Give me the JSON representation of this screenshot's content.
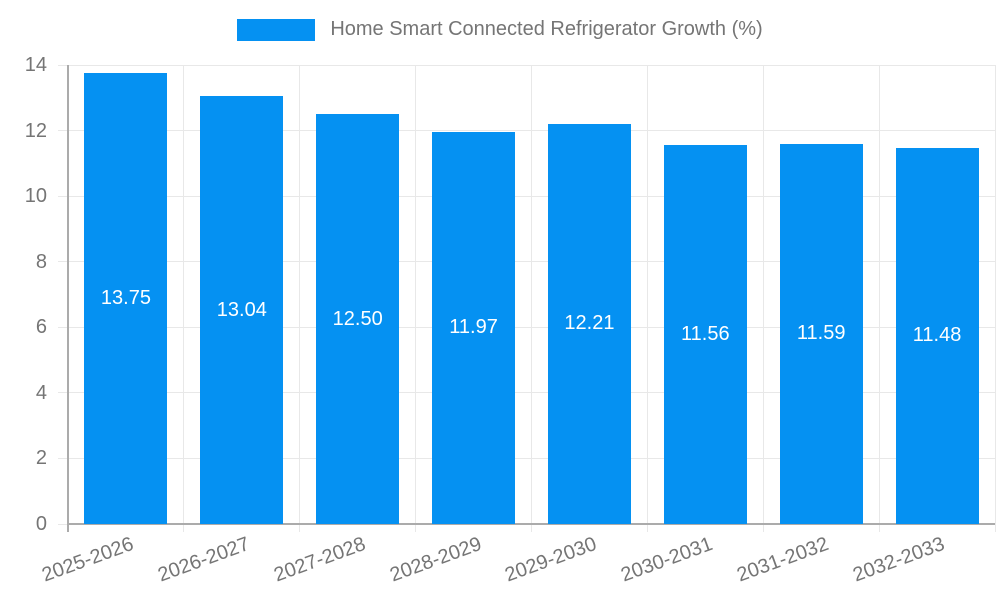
{
  "chart_data": {
    "type": "bar",
    "title": "Home Smart Connected Refrigerator Growth (%)",
    "legend_position": "top-center",
    "categories": [
      "2025-2026",
      "2026-2027",
      "2027-2028",
      "2028-2029",
      "2029-2030",
      "2030-2031",
      "2031-2032",
      "2032-2033"
    ],
    "values": [
      13.75,
      13.04,
      12.5,
      11.97,
      12.21,
      11.56,
      11.59,
      11.48
    ],
    "value_labels": [
      "13.75",
      "13.04",
      "12.50",
      "11.97",
      "12.21",
      "11.56",
      "11.59",
      "11.48"
    ],
    "xlabel": "",
    "ylabel": "",
    "ylim": [
      0,
      14
    ],
    "y_ticks": [
      0,
      2,
      4,
      6,
      8,
      10,
      12,
      14
    ],
    "grid": true,
    "bar_label_position": "center",
    "x_label_rotation_deg": -20,
    "colors": {
      "bar": "#0591F2",
      "grid": "#E8E8E8",
      "axis": "#ABABAB",
      "tick_text": "#757575",
      "value_text": "#FFFFFF",
      "background": "#FFFFFF"
    }
  }
}
